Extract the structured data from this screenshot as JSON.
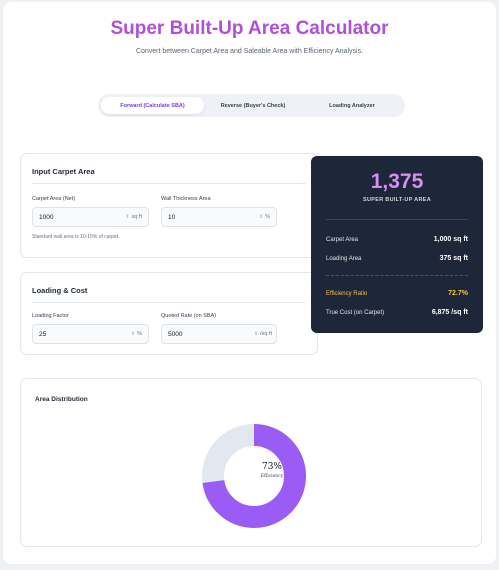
{
  "header": {
    "title": "Super Built-Up Area Calculator",
    "subtitle": "Convert between Carpet Area and Saleable Area with Efficiency Analysis."
  },
  "tabs": [
    {
      "label": "Forward (Calculate SBA)",
      "active": true
    },
    {
      "label": "Reverse (Buyer's Check)",
      "active": false
    },
    {
      "label": "Loading Analyzer",
      "active": false
    }
  ],
  "carpet_card": {
    "title": "Input Carpet Area",
    "carpet_label": "Carpet Area (Net)",
    "carpet_value": "1000",
    "carpet_unit": "sq ft",
    "wall_label": "Wall Thickness Area",
    "wall_value": "10",
    "wall_unit": "%",
    "hint": "Standard wall area is 10-15% of carpet."
  },
  "loading_card": {
    "title": "Loading & Cost",
    "loading_label": "Loading Factor",
    "loading_value": "25",
    "loading_unit": "%",
    "rate_label": "Quoted Rate (on SBA)",
    "rate_value": "5000",
    "rate_unit": "/sq ft"
  },
  "result": {
    "value": "1,375",
    "label": "SUPER BUILT-UP AREA",
    "rows": [
      {
        "key": "Carpet Area",
        "value": "1,000 sq ft"
      },
      {
        "key": "Loading Area",
        "value": "375 sq ft"
      }
    ],
    "efficiency": {
      "key": "Efficiency Ratio",
      "value": "72.7%"
    },
    "true_cost": {
      "key": "True Cost (on Carpet)",
      "value": "6,875 /sq ft"
    }
  },
  "distribution": {
    "title": "Area Distribution",
    "center_pct": "73%",
    "center_label": "Efficiency",
    "efficiency_fraction": 0.727,
    "colors": {
      "filled": "#9b5cf6",
      "empty": "#e2e8f0"
    }
  },
  "colors": {
    "title": "#b14fd6",
    "accent": "#7c3aed",
    "result_bg": "#1e2639",
    "result_value": "#d98cf2",
    "efficiency": "#f5c542"
  }
}
